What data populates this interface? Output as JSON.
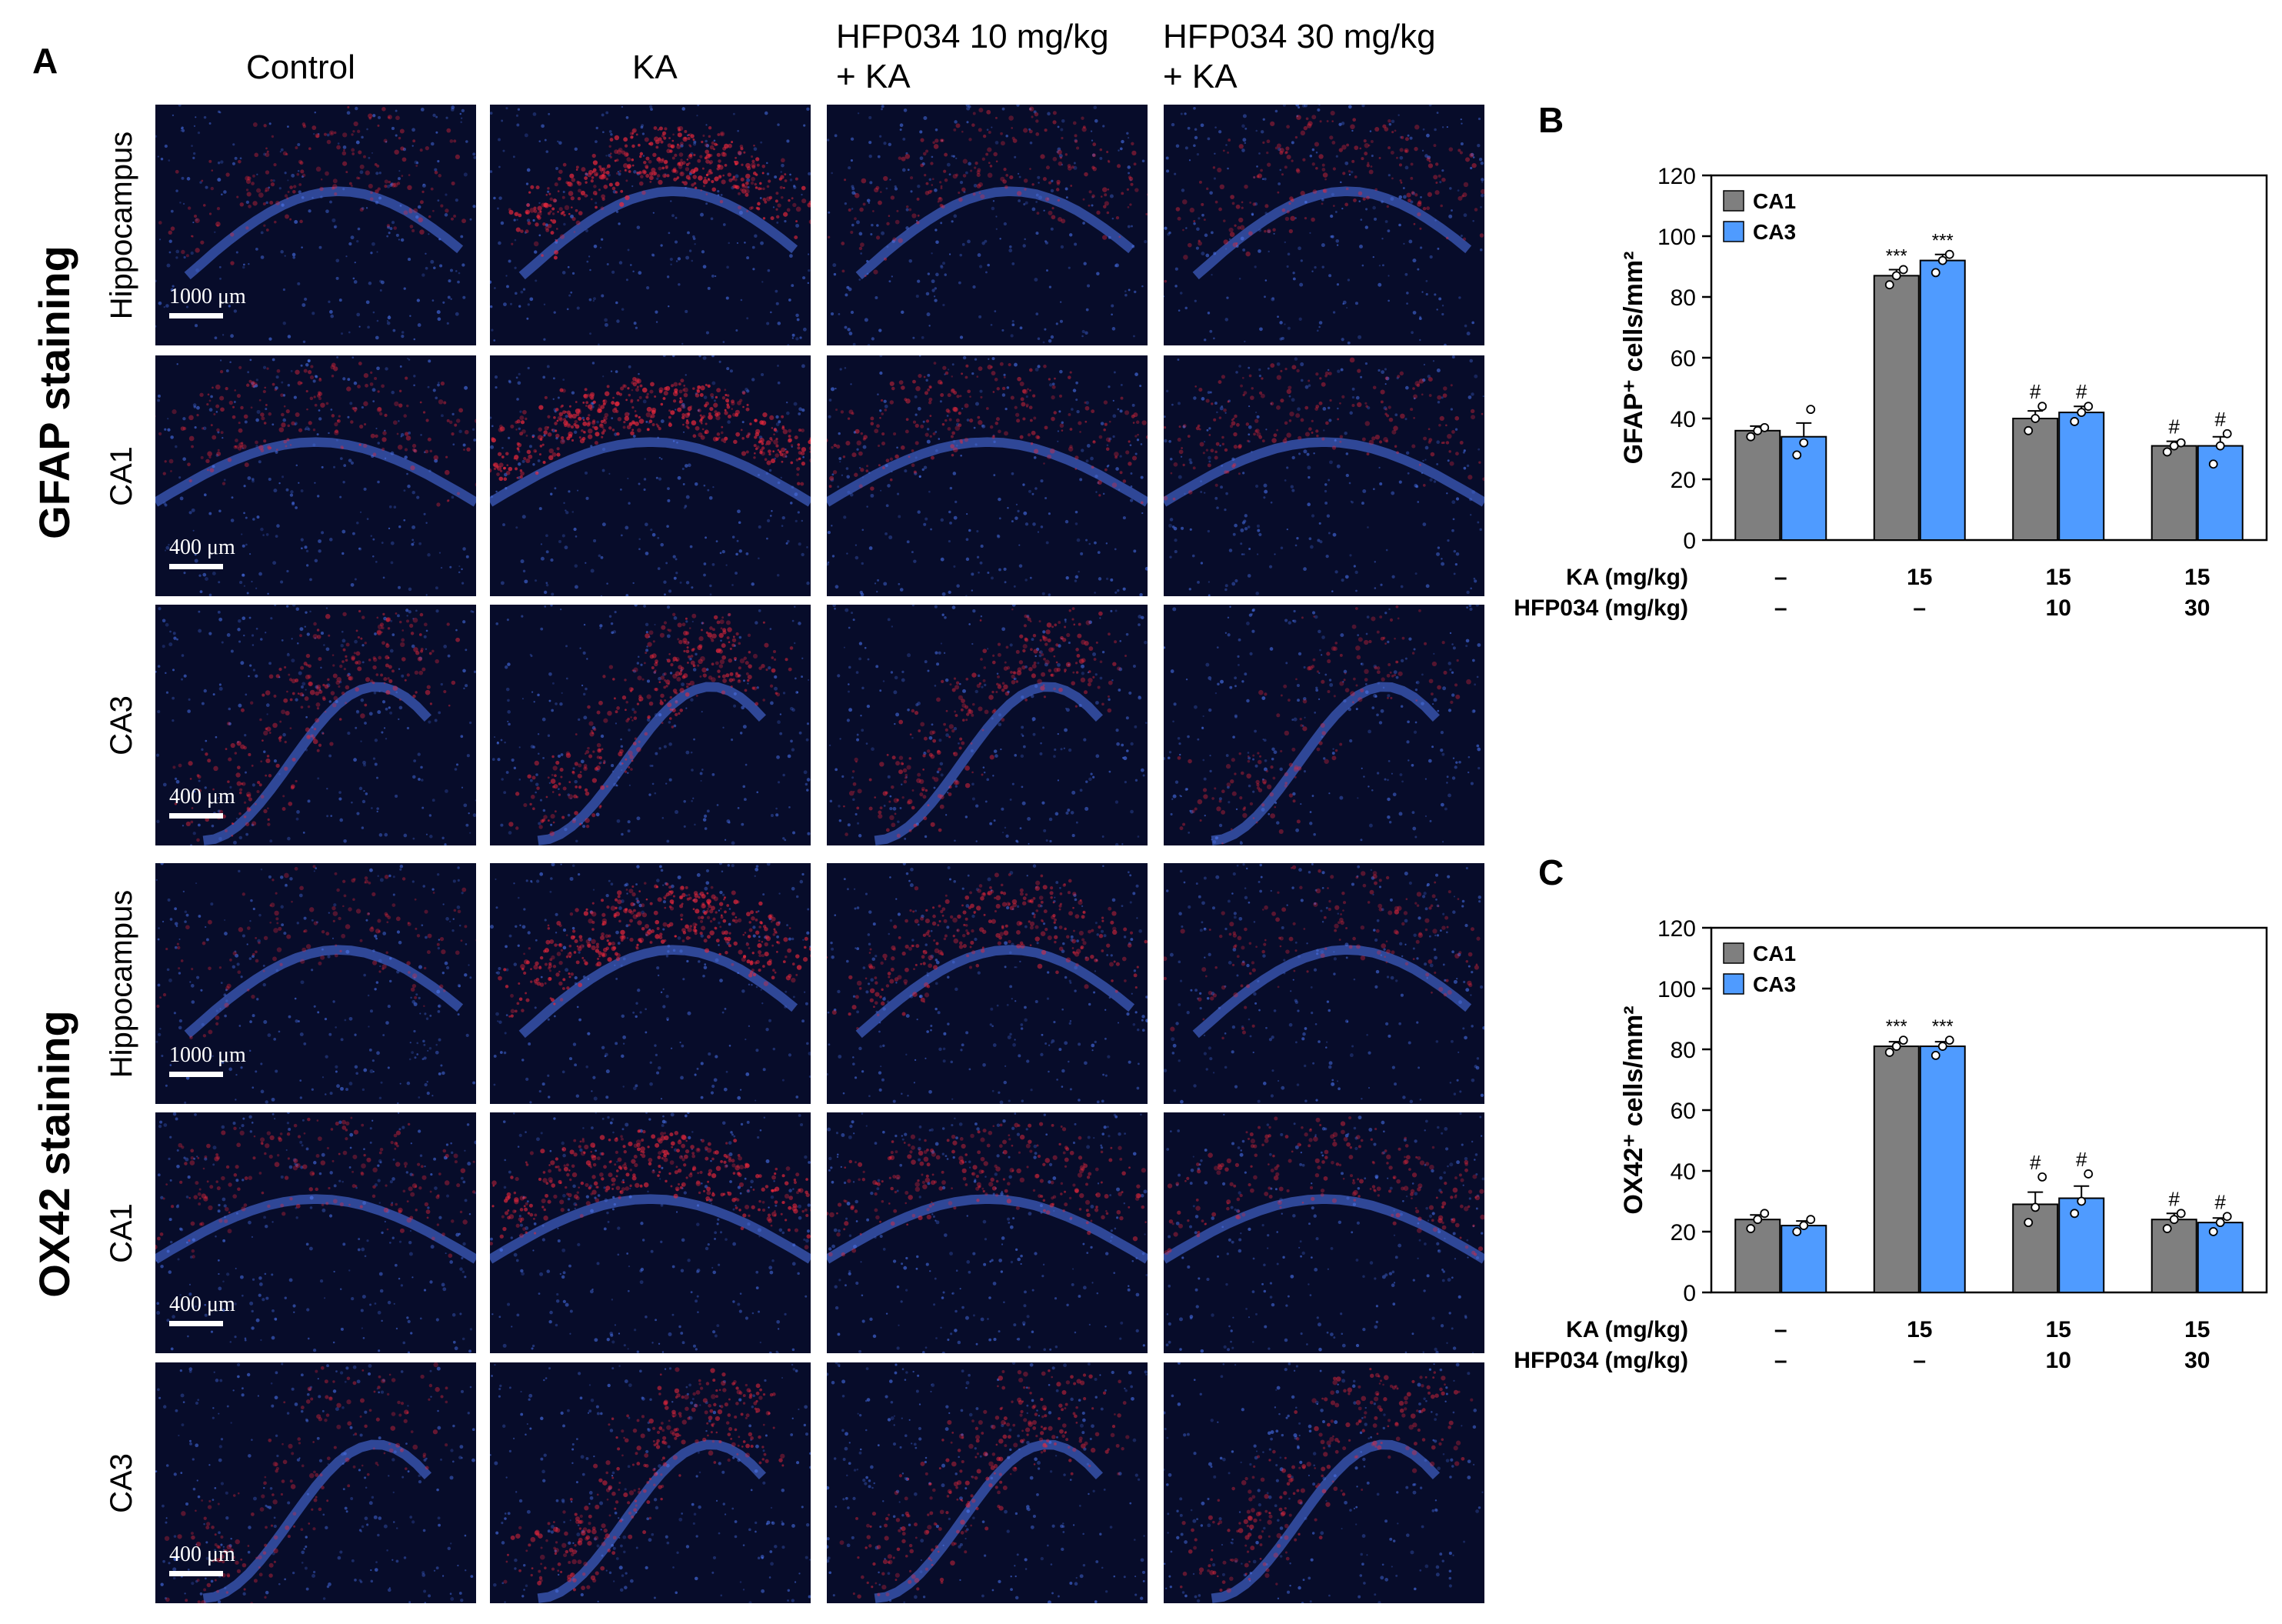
{
  "panel_a": {
    "letter": "A",
    "columns": [
      "Control",
      "KA",
      "HFP034 10 mg/kg\n+ KA",
      "HFP034 30 mg/kg\n+ KA"
    ],
    "sections": [
      {
        "label": "GFAP staining",
        "rows": [
          {
            "label": "Hippocampus",
            "scale": "1000 μm",
            "kind": "hippo",
            "intensity": [
              0.25,
              0.85,
              0.3,
              0.3
            ]
          },
          {
            "label": "CA1",
            "scale": "400 μm",
            "kind": "ca1",
            "intensity": [
              0.35,
              0.9,
              0.4,
              0.3
            ]
          },
          {
            "label": "CA3",
            "scale": "400 μm",
            "kind": "ca3",
            "intensity": [
              0.45,
              0.6,
              0.45,
              0.2
            ]
          }
        ]
      },
      {
        "label": "OX42 staining",
        "rows": [
          {
            "label": "Hippocampus",
            "scale": "1000 μm",
            "kind": "hippo",
            "intensity": [
              0.15,
              0.8,
              0.5,
              0.2
            ]
          },
          {
            "label": "CA1",
            "scale": "400 μm",
            "kind": "ca1",
            "intensity": [
              0.3,
              0.75,
              0.45,
              0.35
            ]
          },
          {
            "label": "CA3",
            "scale": "400 μm",
            "kind": "ca3",
            "intensity": [
              0.25,
              0.55,
              0.45,
              0.4
            ]
          }
        ]
      }
    ]
  },
  "chart_data": [
    {
      "type": "bar",
      "panel": "B",
      "ylabel": "GFAP⁺ cells/mm²",
      "ylim": [
        0,
        120
      ],
      "yticks": [
        0,
        20,
        40,
        60,
        80,
        100,
        120
      ],
      "ka_label": "KA (mg/kg)",
      "hfp_label": "HFP034 (mg/kg)",
      "ka_values": [
        "–",
        "15",
        "15",
        "15"
      ],
      "hfp_values": [
        "–",
        "–",
        "10",
        "30"
      ],
      "legend_position": "top-left",
      "series": [
        {
          "name": "CA1",
          "color": "#7f7f7f",
          "values": [
            36,
            87,
            40,
            31
          ],
          "errors": [
            1.5,
            2,
            2.5,
            1.5
          ],
          "points": [
            [
              34,
              36,
              37
            ],
            [
              84,
              87,
              89
            ],
            [
              36,
              40,
              44
            ],
            [
              29,
              31,
              32
            ]
          ],
          "sig": [
            "",
            "***",
            "#",
            "#"
          ]
        },
        {
          "name": "CA3",
          "color": "#4f9bff",
          "values": [
            34,
            92,
            42,
            31
          ],
          "errors": [
            4.5,
            2,
            2,
            3
          ],
          "points": [
            [
              28,
              32,
              43
            ],
            [
              88,
              92,
              94
            ],
            [
              39,
              42,
              44
            ],
            [
              25,
              31,
              35
            ]
          ],
          "sig": [
            "",
            "***",
            "#",
            "#"
          ]
        }
      ]
    },
    {
      "type": "bar",
      "panel": "C",
      "ylabel": "OX42⁺ cells/mm²",
      "ylim": [
        0,
        120
      ],
      "yticks": [
        0,
        20,
        40,
        60,
        80,
        100,
        120
      ],
      "ka_label": "KA (mg/kg)",
      "hfp_label": "HFP034 (mg/kg)",
      "ka_values": [
        "–",
        "15",
        "15",
        "15"
      ],
      "hfp_values": [
        "–",
        "–",
        "10",
        "30"
      ],
      "legend_position": "top-left",
      "series": [
        {
          "name": "CA1",
          "color": "#7f7f7f",
          "values": [
            24,
            81,
            29,
            24
          ],
          "errors": [
            1.5,
            1.5,
            4,
            2
          ],
          "points": [
            [
              21,
              24,
              26
            ],
            [
              79,
              81,
              83
            ],
            [
              23,
              28,
              38
            ],
            [
              21,
              24,
              26
            ]
          ],
          "sig": [
            "",
            "***",
            "#",
            "#"
          ]
        },
        {
          "name": "CA3",
          "color": "#4f9bff",
          "values": [
            22,
            81,
            31,
            23
          ],
          "errors": [
            1.5,
            1.5,
            4,
            1.5
          ],
          "points": [
            [
              20,
              22,
              24
            ],
            [
              78,
              81,
              83
            ],
            [
              26,
              30,
              39
            ],
            [
              20,
              23,
              25
            ]
          ],
          "sig": [
            "",
            "***",
            "#",
            "#"
          ]
        }
      ]
    }
  ]
}
